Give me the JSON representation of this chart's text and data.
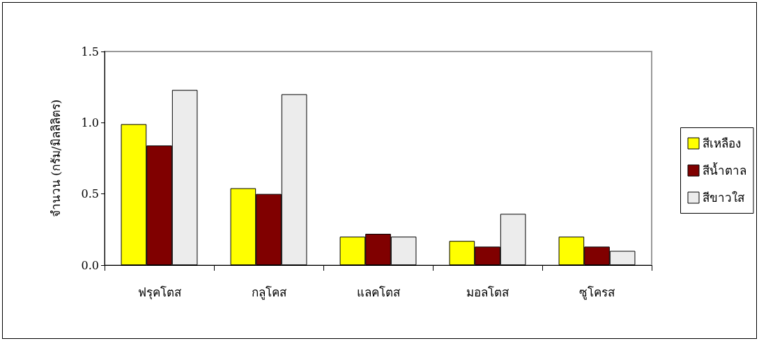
{
  "chart_data": {
    "type": "bar",
    "ylabel": "จำนวน (กรัม/มิลลิลิตร)",
    "categories": [
      "ฟรุคโตส",
      "กลูโคส",
      "แลคโตส",
      "มอลโตส",
      "ซูโครส"
    ],
    "series": [
      {
        "name": "สีเหลือง",
        "color": "#ffff00",
        "values": [
          0.99,
          0.54,
          0.2,
          0.17,
          0.2
        ]
      },
      {
        "name": "สีน้ำตาล",
        "color": "#800000",
        "values": [
          0.84,
          0.5,
          0.22,
          0.13,
          0.13
        ]
      },
      {
        "name": "สีขาวใส",
        "color": "#ececec",
        "values": [
          1.23,
          1.2,
          0.2,
          0.36,
          0.1
        ]
      }
    ],
    "ylim": [
      0,
      1.5
    ],
    "yticks": [
      {
        "value": 0,
        "label": "0.0"
      },
      0.5,
      {
        "value": 1,
        "label": "1.0"
      },
      1.5
    ],
    "grid": false,
    "legend": "right"
  }
}
